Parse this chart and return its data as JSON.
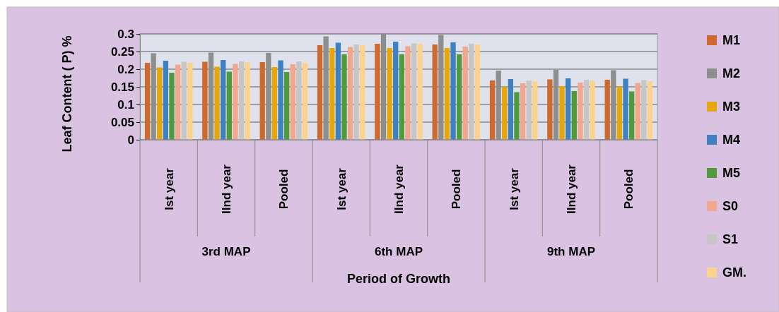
{
  "chart_data": {
    "type": "bar",
    "xlabel": "Period of Growth",
    "ylabel": "Leaf Content ( P)  %",
    "categories": [
      "Ist  year",
      "IInd  year",
      "Pooled",
      "Ist  year",
      "IInd  year",
      "Pooled",
      "Ist  year",
      "IInd  year",
      "Pooled"
    ],
    "annotations": [
      "3rd MAP",
      "6th MAP",
      "9th MAP"
    ],
    "series": [
      {
        "name": "M1",
        "color": "#cf6a2e",
        "values": [
          0.218,
          0.221,
          0.22,
          0.268,
          0.272,
          0.27,
          0.168,
          0.171,
          0.17
        ]
      },
      {
        "name": "M2",
        "color": "#8e8e8e",
        "values": [
          0.245,
          0.247,
          0.246,
          0.293,
          0.3,
          0.297,
          0.196,
          0.198,
          0.197
        ]
      },
      {
        "name": "M3",
        "color": "#e5a70a",
        "values": [
          0.205,
          0.207,
          0.206,
          0.26,
          0.26,
          0.26,
          0.15,
          0.152,
          0.151
        ]
      },
      {
        "name": "M4",
        "color": "#3f80c2",
        "values": [
          0.224,
          0.226,
          0.225,
          0.275,
          0.278,
          0.276,
          0.172,
          0.174,
          0.173
        ]
      },
      {
        "name": "M5",
        "color": "#4f9a3c",
        "values": [
          0.19,
          0.193,
          0.192,
          0.242,
          0.242,
          0.242,
          0.135,
          0.138,
          0.137
        ]
      },
      {
        "name": "S0",
        "color": "#f2a68e",
        "values": [
          0.213,
          0.215,
          0.214,
          0.263,
          0.265,
          0.264,
          0.16,
          0.162,
          0.161
        ]
      },
      {
        "name": "S1",
        "color": "#c6c6c6",
        "values": [
          0.221,
          0.222,
          0.222,
          0.27,
          0.273,
          0.272,
          0.168,
          0.17,
          0.169
        ]
      },
      {
        "name": "GM.",
        "color": "#fcd28c",
        "values": [
          0.218,
          0.219,
          0.218,
          0.268,
          0.272,
          0.27,
          0.165,
          0.167,
          0.166
        ]
      }
    ],
    "ylim": [
      0,
      0.3
    ],
    "yticks": [
      0,
      0.05,
      0.1,
      0.15,
      0.2,
      0.25,
      0.3
    ],
    "grid": "y",
    "legend": "right"
  }
}
